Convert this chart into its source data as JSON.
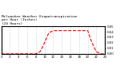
{
  "title": "Milwaukee Weather Evapotranspiration\nper Hour (Inches)\n(24 Hours)",
  "hours": [
    0,
    1,
    2,
    3,
    4,
    5,
    6,
    7,
    8,
    9,
    10,
    11,
    12,
    13,
    14,
    15,
    16,
    17,
    18,
    19,
    20,
    21,
    22,
    23,
    24
  ],
  "values": [
    0.0,
    0.0,
    0.0,
    0.0,
    0.0,
    0.0,
    0.0,
    0.0,
    0.0,
    0.004,
    0.02,
    0.038,
    0.042,
    0.042,
    0.042,
    0.042,
    0.042,
    0.042,
    0.042,
    0.042,
    0.042,
    0.02,
    0.004,
    0.0,
    0.0
  ],
  "line_color": "#ff0000",
  "line_style": "--",
  "line_width": 0.8,
  "grid_color": "#aaaaaa",
  "grid_style": ":",
  "bg_color": "#ffffff",
  "ylim": [
    0,
    0.05
  ],
  "xlim": [
    0,
    24
  ],
  "yticks": [
    0.0,
    0.01,
    0.02,
    0.03,
    0.04,
    0.05
  ],
  "xticks": [
    0,
    2,
    4,
    6,
    8,
    10,
    12,
    14,
    16,
    18,
    20,
    22,
    24
  ],
  "title_fontsize": 3.2,
  "tick_fontsize": 2.8
}
